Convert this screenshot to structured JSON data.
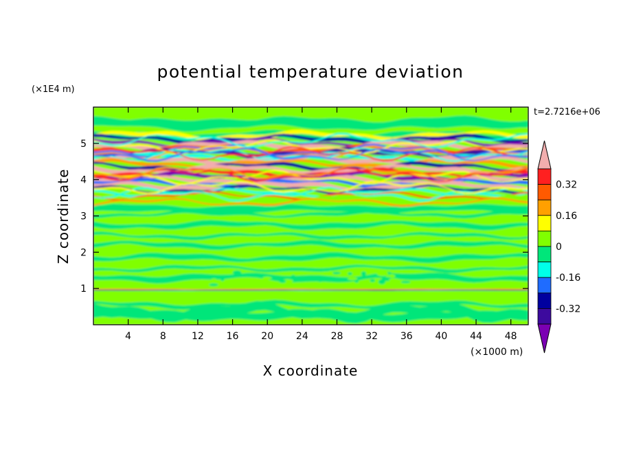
{
  "chart_data": {
    "type": "heatmap",
    "title": "potential temperature deviation",
    "xlabel": "X coordinate",
    "ylabel": "Z coordinate",
    "x_unit": "(×1000 m)",
    "y_unit": "(×1E4 m)",
    "time_label": "t=2.7216e+06",
    "xlim": [
      0,
      50
    ],
    "ylim": [
      0,
      6
    ],
    "x_ticks": [
      4,
      8,
      12,
      16,
      20,
      24,
      28,
      32,
      36,
      40,
      44,
      48
    ],
    "y_ticks": [
      1,
      2,
      3,
      4,
      5
    ],
    "colorbar": {
      "levels": [
        -0.4,
        -0.32,
        -0.24,
        -0.16,
        -0.08,
        0,
        0.08,
        0.16,
        0.24,
        0.32,
        0.4
      ],
      "labels": [
        "0.32",
        "0.16",
        "0",
        "-0.16",
        "-0.32"
      ],
      "label_values": [
        0.32,
        0.16,
        0,
        -0.16,
        -0.32
      ],
      "colors": [
        "#7b00b3",
        "#3d0a9e",
        "#00009f",
        "#1f6cff",
        "#00ffe8",
        "#00e67a",
        "#80ff00",
        "#ffff00",
        "#ffa000",
        "#ff5a00",
        "#ff2020",
        "#f2aeae"
      ],
      "extend": "both"
    },
    "bands": [
      {
        "z": [
          0.0,
          0.9
        ],
        "level": "0 to 0.08 (mixed with -0.08 to 0)"
      },
      {
        "z": [
          0.9,
          1.0
        ],
        "level": "-0.16 to 0.24 (thin layer)"
      },
      {
        "z": [
          1.0,
          3.3
        ],
        "level": "-0.08 to 0.08 (alternating layers)"
      },
      {
        "z": [
          3.3,
          5.3
        ],
        "level": "-0.40 to 0.40 (strong oscillating layers)"
      },
      {
        "z": [
          5.3,
          6.0
        ],
        "level": "0 to 0.08"
      }
    ]
  }
}
